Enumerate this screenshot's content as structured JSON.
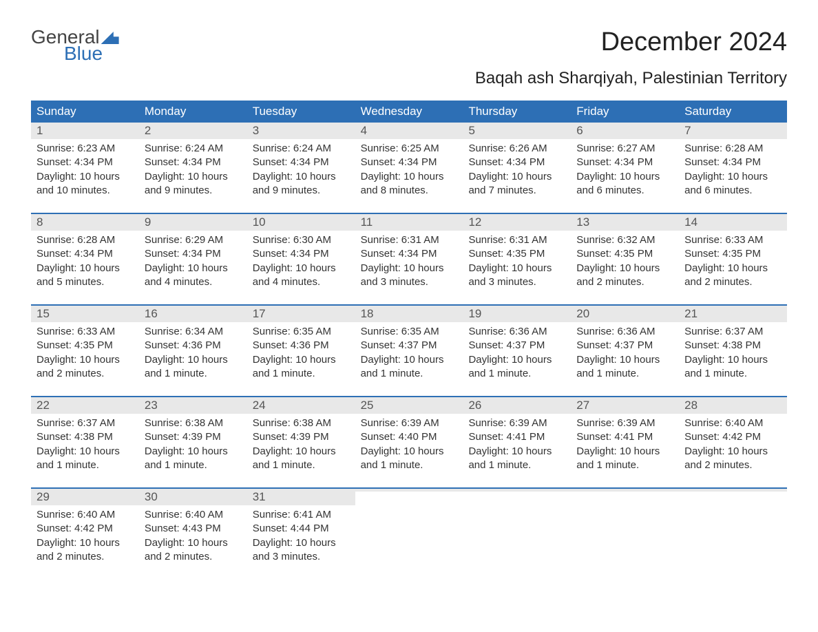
{
  "logo": {
    "general": "General",
    "blue": "Blue"
  },
  "title": "December 2024",
  "subtitle": "Baqah ash Sharqiyah, Palestinian Territory",
  "colors": {
    "header_bg": "#2d6fb5",
    "header_text": "#ffffff",
    "daynum_bg": "#e8e8e8",
    "daynum_text": "#555555",
    "body_text": "#333333",
    "week_border": "#2d6fb5",
    "background": "#ffffff"
  },
  "day_headers": [
    "Sunday",
    "Monday",
    "Tuesday",
    "Wednesday",
    "Thursday",
    "Friday",
    "Saturday"
  ],
  "weeks": [
    [
      {
        "day": "1",
        "sunrise": "Sunrise: 6:23 AM",
        "sunset": "Sunset: 4:34 PM",
        "dl1": "Daylight: 10 hours",
        "dl2": "and 10 minutes."
      },
      {
        "day": "2",
        "sunrise": "Sunrise: 6:24 AM",
        "sunset": "Sunset: 4:34 PM",
        "dl1": "Daylight: 10 hours",
        "dl2": "and 9 minutes."
      },
      {
        "day": "3",
        "sunrise": "Sunrise: 6:24 AM",
        "sunset": "Sunset: 4:34 PM",
        "dl1": "Daylight: 10 hours",
        "dl2": "and 9 minutes."
      },
      {
        "day": "4",
        "sunrise": "Sunrise: 6:25 AM",
        "sunset": "Sunset: 4:34 PM",
        "dl1": "Daylight: 10 hours",
        "dl2": "and 8 minutes."
      },
      {
        "day": "5",
        "sunrise": "Sunrise: 6:26 AM",
        "sunset": "Sunset: 4:34 PM",
        "dl1": "Daylight: 10 hours",
        "dl2": "and 7 minutes."
      },
      {
        "day": "6",
        "sunrise": "Sunrise: 6:27 AM",
        "sunset": "Sunset: 4:34 PM",
        "dl1": "Daylight: 10 hours",
        "dl2": "and 6 minutes."
      },
      {
        "day": "7",
        "sunrise": "Sunrise: 6:28 AM",
        "sunset": "Sunset: 4:34 PM",
        "dl1": "Daylight: 10 hours",
        "dl2": "and 6 minutes."
      }
    ],
    [
      {
        "day": "8",
        "sunrise": "Sunrise: 6:28 AM",
        "sunset": "Sunset: 4:34 PM",
        "dl1": "Daylight: 10 hours",
        "dl2": "and 5 minutes."
      },
      {
        "day": "9",
        "sunrise": "Sunrise: 6:29 AM",
        "sunset": "Sunset: 4:34 PM",
        "dl1": "Daylight: 10 hours",
        "dl2": "and 4 minutes."
      },
      {
        "day": "10",
        "sunrise": "Sunrise: 6:30 AM",
        "sunset": "Sunset: 4:34 PM",
        "dl1": "Daylight: 10 hours",
        "dl2": "and 4 minutes."
      },
      {
        "day": "11",
        "sunrise": "Sunrise: 6:31 AM",
        "sunset": "Sunset: 4:34 PM",
        "dl1": "Daylight: 10 hours",
        "dl2": "and 3 minutes."
      },
      {
        "day": "12",
        "sunrise": "Sunrise: 6:31 AM",
        "sunset": "Sunset: 4:35 PM",
        "dl1": "Daylight: 10 hours",
        "dl2": "and 3 minutes."
      },
      {
        "day": "13",
        "sunrise": "Sunrise: 6:32 AM",
        "sunset": "Sunset: 4:35 PM",
        "dl1": "Daylight: 10 hours",
        "dl2": "and 2 minutes."
      },
      {
        "day": "14",
        "sunrise": "Sunrise: 6:33 AM",
        "sunset": "Sunset: 4:35 PM",
        "dl1": "Daylight: 10 hours",
        "dl2": "and 2 minutes."
      }
    ],
    [
      {
        "day": "15",
        "sunrise": "Sunrise: 6:33 AM",
        "sunset": "Sunset: 4:35 PM",
        "dl1": "Daylight: 10 hours",
        "dl2": "and 2 minutes."
      },
      {
        "day": "16",
        "sunrise": "Sunrise: 6:34 AM",
        "sunset": "Sunset: 4:36 PM",
        "dl1": "Daylight: 10 hours",
        "dl2": "and 1 minute."
      },
      {
        "day": "17",
        "sunrise": "Sunrise: 6:35 AM",
        "sunset": "Sunset: 4:36 PM",
        "dl1": "Daylight: 10 hours",
        "dl2": "and 1 minute."
      },
      {
        "day": "18",
        "sunrise": "Sunrise: 6:35 AM",
        "sunset": "Sunset: 4:37 PM",
        "dl1": "Daylight: 10 hours",
        "dl2": "and 1 minute."
      },
      {
        "day": "19",
        "sunrise": "Sunrise: 6:36 AM",
        "sunset": "Sunset: 4:37 PM",
        "dl1": "Daylight: 10 hours",
        "dl2": "and 1 minute."
      },
      {
        "day": "20",
        "sunrise": "Sunrise: 6:36 AM",
        "sunset": "Sunset: 4:37 PM",
        "dl1": "Daylight: 10 hours",
        "dl2": "and 1 minute."
      },
      {
        "day": "21",
        "sunrise": "Sunrise: 6:37 AM",
        "sunset": "Sunset: 4:38 PM",
        "dl1": "Daylight: 10 hours",
        "dl2": "and 1 minute."
      }
    ],
    [
      {
        "day": "22",
        "sunrise": "Sunrise: 6:37 AM",
        "sunset": "Sunset: 4:38 PM",
        "dl1": "Daylight: 10 hours",
        "dl2": "and 1 minute."
      },
      {
        "day": "23",
        "sunrise": "Sunrise: 6:38 AM",
        "sunset": "Sunset: 4:39 PM",
        "dl1": "Daylight: 10 hours",
        "dl2": "and 1 minute."
      },
      {
        "day": "24",
        "sunrise": "Sunrise: 6:38 AM",
        "sunset": "Sunset: 4:39 PM",
        "dl1": "Daylight: 10 hours",
        "dl2": "and 1 minute."
      },
      {
        "day": "25",
        "sunrise": "Sunrise: 6:39 AM",
        "sunset": "Sunset: 4:40 PM",
        "dl1": "Daylight: 10 hours",
        "dl2": "and 1 minute."
      },
      {
        "day": "26",
        "sunrise": "Sunrise: 6:39 AM",
        "sunset": "Sunset: 4:41 PM",
        "dl1": "Daylight: 10 hours",
        "dl2": "and 1 minute."
      },
      {
        "day": "27",
        "sunrise": "Sunrise: 6:39 AM",
        "sunset": "Sunset: 4:41 PM",
        "dl1": "Daylight: 10 hours",
        "dl2": "and 1 minute."
      },
      {
        "day": "28",
        "sunrise": "Sunrise: 6:40 AM",
        "sunset": "Sunset: 4:42 PM",
        "dl1": "Daylight: 10 hours",
        "dl2": "and 2 minutes."
      }
    ],
    [
      {
        "day": "29",
        "sunrise": "Sunrise: 6:40 AM",
        "sunset": "Sunset: 4:42 PM",
        "dl1": "Daylight: 10 hours",
        "dl2": "and 2 minutes."
      },
      {
        "day": "30",
        "sunrise": "Sunrise: 6:40 AM",
        "sunset": "Sunset: 4:43 PM",
        "dl1": "Daylight: 10 hours",
        "dl2": "and 2 minutes."
      },
      {
        "day": "31",
        "sunrise": "Sunrise: 6:41 AM",
        "sunset": "Sunset: 4:44 PM",
        "dl1": "Daylight: 10 hours",
        "dl2": "and 3 minutes."
      },
      {
        "day": "",
        "sunrise": "",
        "sunset": "",
        "dl1": "",
        "dl2": ""
      },
      {
        "day": "",
        "sunrise": "",
        "sunset": "",
        "dl1": "",
        "dl2": ""
      },
      {
        "day": "",
        "sunrise": "",
        "sunset": "",
        "dl1": "",
        "dl2": ""
      },
      {
        "day": "",
        "sunrise": "",
        "sunset": "",
        "dl1": "",
        "dl2": ""
      }
    ]
  ]
}
